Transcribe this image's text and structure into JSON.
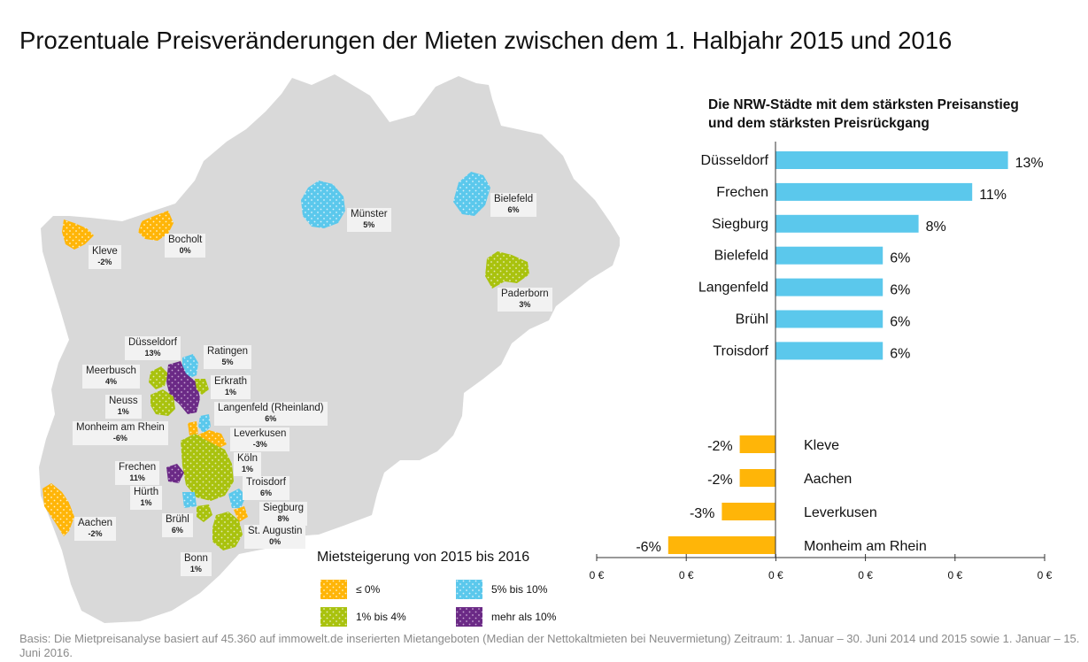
{
  "title": "Prozentuale Preisveränderungen der Mieten zwischen dem 1. Halbjahr 2015 und 2016",
  "colors": {
    "land": "#d9d9d9",
    "increase_bar": "#5bc8ec",
    "decrease_bar": "#ffb508",
    "le0": "#ffb508",
    "p1to4": "#a9c20e",
    "p5to10": "#5bc8ec",
    "gt10": "#6b2a86"
  },
  "map": {
    "labels": [
      {
        "id": "kleve",
        "name": "Kleve",
        "value": "-2%"
      },
      {
        "id": "bocholt",
        "name": "Bocholt",
        "value": "0%"
      },
      {
        "id": "muenster",
        "name": "Münster",
        "value": "5%"
      },
      {
        "id": "bielefeld",
        "name": "Bielefeld",
        "value": "6%"
      },
      {
        "id": "paderborn",
        "name": "Paderborn",
        "value": "3%"
      },
      {
        "id": "duesseldorf",
        "name": "Düsseldorf",
        "value": "13%"
      },
      {
        "id": "ratingen",
        "name": "Ratingen",
        "value": "5%"
      },
      {
        "id": "meerbusch",
        "name": "Meerbusch",
        "value": "4%"
      },
      {
        "id": "erkrath",
        "name": "Erkrath",
        "value": "1%"
      },
      {
        "id": "neuss",
        "name": "Neuss",
        "value": "1%"
      },
      {
        "id": "langenfeld",
        "name": "Langenfeld (Rheinland)",
        "value": "6%"
      },
      {
        "id": "monheim",
        "name": "Monheim am Rhein",
        "value": "-6%"
      },
      {
        "id": "leverkusen",
        "name": "Leverkusen",
        "value": "-3%"
      },
      {
        "id": "koeln",
        "name": "Köln",
        "value": "1%"
      },
      {
        "id": "frechen",
        "name": "Frechen",
        "value": "11%"
      },
      {
        "id": "troisdorf",
        "name": "Troisdorf",
        "value": "6%"
      },
      {
        "id": "huerth",
        "name": "Hürth",
        "value": "1%"
      },
      {
        "id": "siegburg",
        "name": "Siegburg",
        "value": "8%"
      },
      {
        "id": "aachen",
        "name": "Aachen",
        "value": "-2%"
      },
      {
        "id": "bruehl",
        "name": "Brühl",
        "value": "6%"
      },
      {
        "id": "staugustin",
        "name": "St. Augustin",
        "value": "0%"
      },
      {
        "id": "bonn",
        "name": "Bonn",
        "value": "1%"
      }
    ],
    "legend": {
      "title": "Mietsteigerung von 2015 bis 2016",
      "items": [
        {
          "id": "le0",
          "label": "≤ 0%"
        },
        {
          "id": "p5to10",
          "label": "5% bis 10%"
        },
        {
          "id": "p1to4",
          "label": "1% bis 4%"
        },
        {
          "id": "gt10",
          "label": "mehr als 10%"
        }
      ]
    }
  },
  "chart_data": {
    "type": "bar",
    "orientation": "horizontal",
    "title_lines": [
      "Die NRW-Städte mit dem stärksten Preisanstieg",
      "und dem stärksten Preisrückgang"
    ],
    "increase": {
      "categories": [
        "Düsseldorf",
        "Frechen",
        "Siegburg",
        "Bielefeld",
        "Langenfeld",
        "Brühl",
        "Troisdorf"
      ],
      "values": [
        13,
        11,
        8,
        6,
        6,
        6,
        6
      ],
      "labels": [
        "13%",
        "11%",
        "8%",
        "6%",
        "6%",
        "6%",
        "6%"
      ]
    },
    "decrease": {
      "categories": [
        "Kleve",
        "Aachen",
        "Leverkusen",
        "Monheim am Rhein"
      ],
      "values": [
        -2,
        -2,
        -3,
        -6
      ],
      "labels": [
        "-2%",
        "-2%",
        "-3%",
        "-6%"
      ]
    },
    "x_tick_labels": [
      "0 €",
      "0 €",
      "0 €",
      "0 €",
      "0 €",
      "0 €"
    ],
    "grid": false
  },
  "footnote": "Basis: Die Mietpreisanalyse basiert auf 45.360 auf immowelt.de inserierten Mietangeboten (Median der Nettokaltmieten bei Neuvermietung) Zeitraum: 1. Januar – 30. Juni 2014 und 2015 sowie 1. Januar – 15. Juni 2016."
}
